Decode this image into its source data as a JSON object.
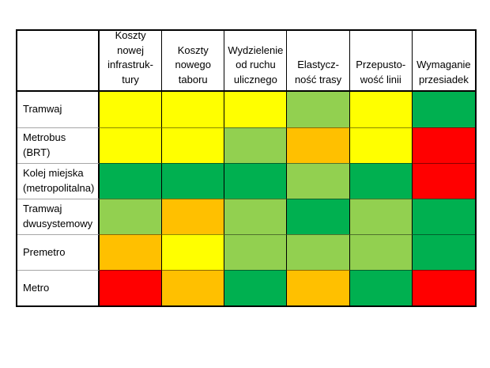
{
  "chart_data": {
    "type": "heatmap",
    "title": "",
    "columns": [
      "Koszty nowej infrastruktury",
      "Koszty nowego taboru",
      "Wydzielenie od ruchu ulicznego",
      "Elastyczność trasy",
      "Przepustowość linii",
      "Wymaganie przesiadek"
    ],
    "rows": [
      "Tramwaj",
      "Metrobus (BRT)",
      "Kolej miejska (metropolitalna)",
      "Tramwaj dwusystemowy",
      "Premetro",
      "Metro"
    ],
    "values": [
      [
        "yellow",
        "yellow",
        "yellow",
        "lightgreen",
        "yellow",
        "green"
      ],
      [
        "yellow",
        "yellow",
        "lightgreen",
        "orange",
        "yellow",
        "red"
      ],
      [
        "green",
        "green",
        "green",
        "lightgreen",
        "green",
        "red"
      ],
      [
        "lightgreen",
        "orange",
        "lightgreen",
        "green",
        "lightgreen",
        "green"
      ],
      [
        "orange",
        "yellow",
        "lightgreen",
        "lightgreen",
        "lightgreen",
        "green"
      ],
      [
        "red",
        "orange",
        "green",
        "orange",
        "green",
        "red"
      ]
    ],
    "color_map": {
      "yellow": "#FFFF00",
      "lightgreen": "#92D050",
      "green": "#00B050",
      "orange": "#FFC000",
      "red": "#FF0000"
    },
    "legend": "none",
    "grid": "on"
  },
  "table": {
    "corner_label": "",
    "column_headers": [
      "Koszty nowej\ninfrastruk-\ntury",
      "Koszty\nnowego\ntaboru",
      "Wydzielenie\nod ruchu\nulicznego",
      "Elastycz-\nność trasy",
      "Przepusto-\nwość linii",
      "Wymaganie\nprzesiadek"
    ],
    "rows": [
      {
        "label": "Tramwaj",
        "cells": [
          "yellow",
          "yellow",
          "yellow",
          "lightgreen",
          "yellow",
          "green"
        ]
      },
      {
        "label": "Metrobus (BRT)",
        "cells": [
          "yellow",
          "yellow",
          "lightgreen",
          "orange",
          "yellow",
          "red"
        ]
      },
      {
        "label": "Kolej miejska\n(metropolitalna)",
        "cells": [
          "green",
          "green",
          "green",
          "lightgreen",
          "green",
          "red"
        ]
      },
      {
        "label": "Tramwaj\ndwusystemowy",
        "cells": [
          "lightgreen",
          "orange",
          "lightgreen",
          "green",
          "lightgreen",
          "green"
        ]
      },
      {
        "label": "Premetro",
        "cells": [
          "orange",
          "yellow",
          "lightgreen",
          "lightgreen",
          "lightgreen",
          "green"
        ]
      },
      {
        "label": "Metro",
        "cells": [
          "red",
          "orange",
          "green",
          "orange",
          "green",
          "red"
        ]
      }
    ],
    "colors": {
      "yellow": "#FFFF00",
      "lightgreen": "#92D050",
      "green": "#00B050",
      "orange": "#FFC000",
      "red": "#FF0000"
    }
  }
}
